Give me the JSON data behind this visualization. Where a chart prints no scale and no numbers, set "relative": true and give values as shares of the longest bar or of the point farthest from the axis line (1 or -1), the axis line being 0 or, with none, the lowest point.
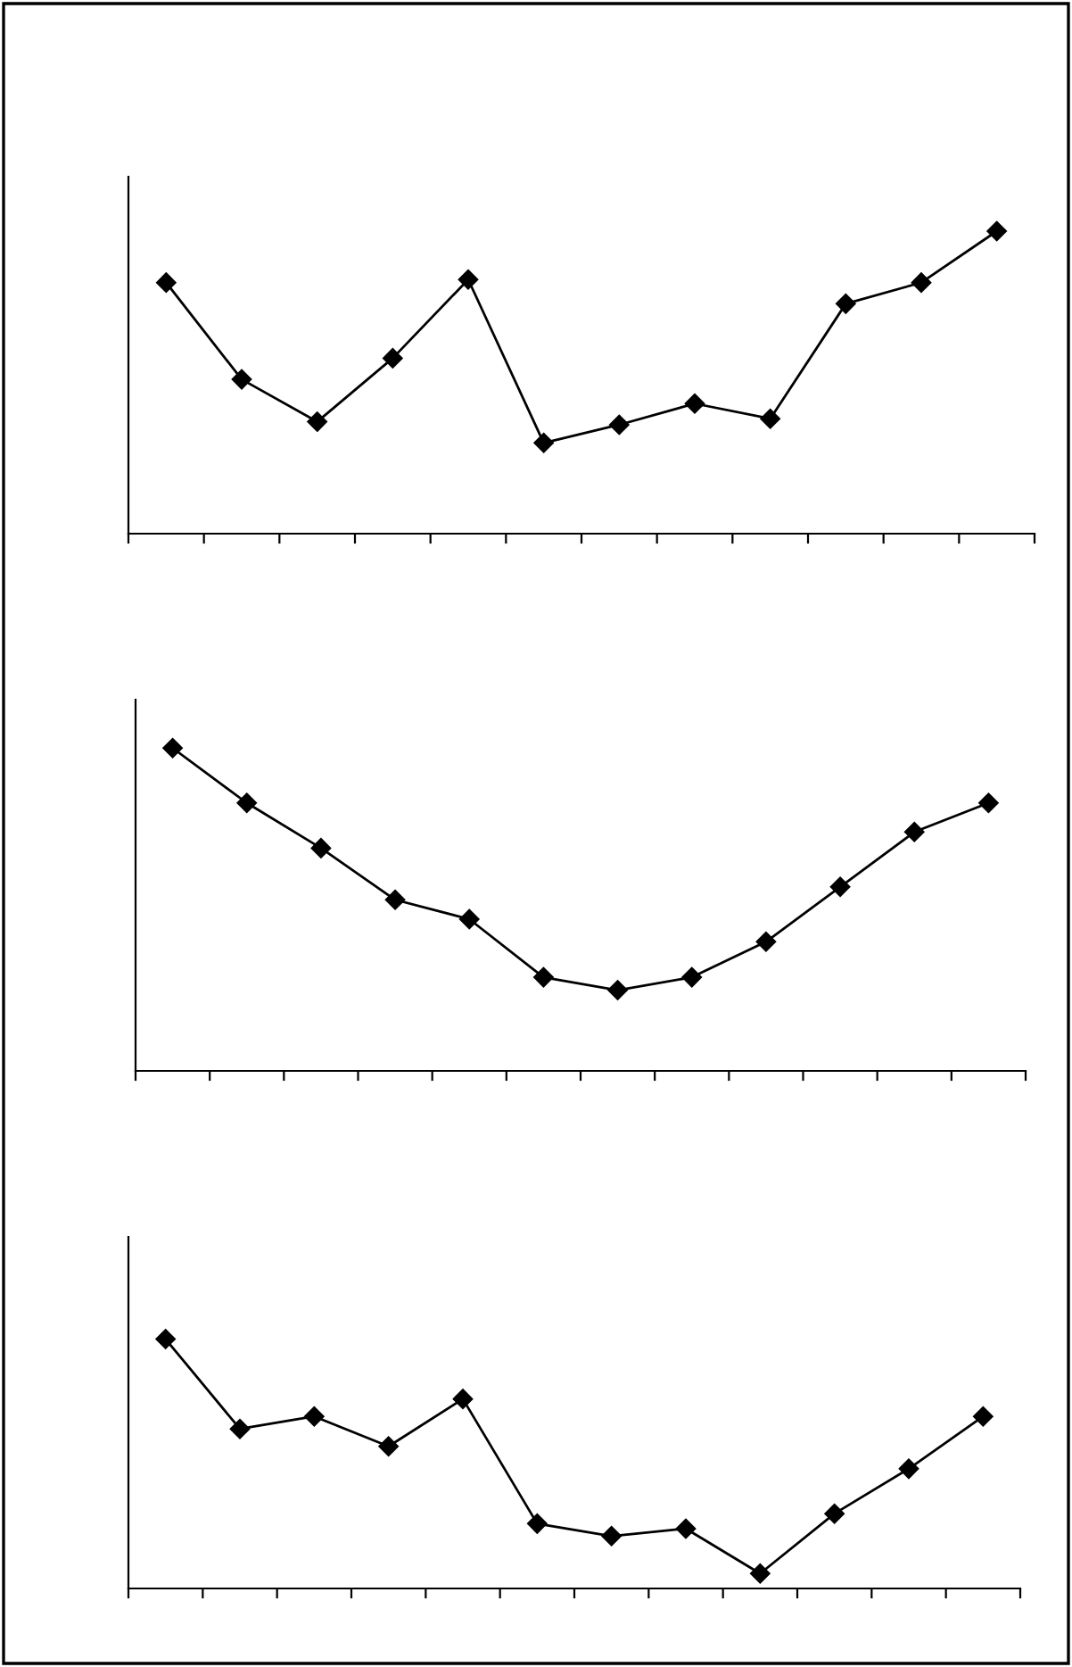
{
  "chart_data": [
    {
      "type": "line",
      "relative": true,
      "marker": "diamond",
      "line_style": "solid",
      "grid": false,
      "legend": false,
      "tick_labels": false,
      "categories": [
        null,
        null,
        null,
        null,
        null,
        null,
        null,
        null,
        null,
        null,
        null,
        null
      ],
      "series": [
        {
          "color": "#000000",
          "values": [
            0.83,
            0.51,
            0.37,
            0.58,
            0.84,
            0.3,
            0.36,
            0.43,
            0.38,
            0.76,
            0.83,
            1
          ]
        }
      ]
    },
    {
      "type": "line",
      "relative": true,
      "marker": "diamond",
      "line_style": "solid",
      "grid": false,
      "legend": false,
      "tick_labels": false,
      "categories": [
        null,
        null,
        null,
        null,
        null,
        null,
        null,
        null,
        null,
        null,
        null,
        null
      ],
      "series": [
        {
          "color": "#000000",
          "values": [
            1,
            0.83,
            0.69,
            0.53,
            0.47,
            0.29,
            0.25,
            0.29,
            0.4,
            0.57,
            0.74,
            0.83
          ]
        }
      ]
    },
    {
      "type": "line",
      "relative": true,
      "marker": "diamond",
      "line_style": "solid",
      "grid": false,
      "legend": false,
      "tick_labels": false,
      "categories": [
        null,
        null,
        null,
        null,
        null,
        null,
        null,
        null,
        null,
        null,
        null,
        null
      ],
      "series": [
        {
          "color": "#000000",
          "values": [
            1,
            0.64,
            0.69,
            0.57,
            0.76,
            0.26,
            0.21,
            0.24,
            0.06,
            0.3,
            0.48,
            0.69
          ]
        }
      ]
    }
  ]
}
